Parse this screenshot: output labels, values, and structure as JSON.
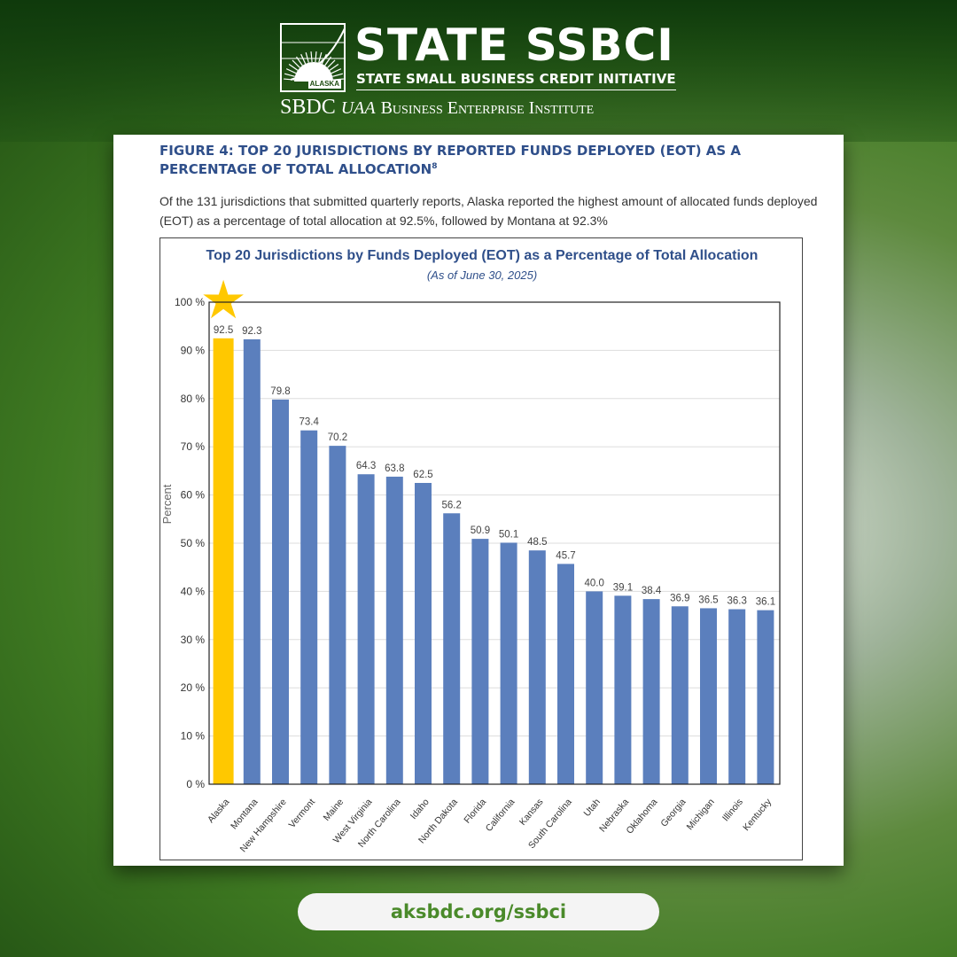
{
  "header": {
    "title": "STATE SSBCI",
    "subtitle": "STATE SMALL BUSINESS CREDIT INITIATIVE",
    "logo_text": "ALASKA",
    "org_sbdc": "SBDC",
    "org_uaa": "UAA",
    "org_bei": "Business Enterprise Institute"
  },
  "figure": {
    "title": "FIGURE 4: TOP 20 JURISDICTIONS BY REPORTED FUNDS DEPLOYED (EOT) AS A PERCENTAGE OF TOTAL ALLOCATION",
    "footnote": "8",
    "description": "Of the 131 jurisdictions that submitted quarterly reports, Alaska reported the highest amount of allocated funds deployed (EOT) as a percentage of total allocation at 92.5%, followed by Montana at 92.3%"
  },
  "chart_data": {
    "type": "bar",
    "title": "Top 20 Jurisdictions by Funds Deployed (EOT) as a Percentage of Total Allocation",
    "subtitle": "(As of June 30, 2025)",
    "xlabel": "",
    "ylabel": "Percent",
    "ylim": [
      0,
      100
    ],
    "yticks": [
      "0 %",
      "10 %",
      "20 %",
      "30 %",
      "40 %",
      "50 %",
      "60 %",
      "70 %",
      "80 %",
      "90 %",
      "100 %"
    ],
    "categories": [
      "Alaska",
      "Montana",
      "New Hampshire",
      "Vermont",
      "Maine",
      "West Virginia",
      "North Carolina",
      "Idaho",
      "North Dakota",
      "Florida",
      "California",
      "Kansas",
      "South Carolina",
      "Utah",
      "Nebraska",
      "Oklahoma",
      "Georgia",
      "Michigan",
      "Illinois",
      "Kentucky"
    ],
    "values": [
      92.5,
      92.3,
      79.8,
      73.4,
      70.2,
      64.3,
      63.8,
      62.5,
      56.2,
      50.9,
      50.1,
      48.5,
      45.7,
      40.0,
      39.1,
      38.4,
      36.9,
      36.5,
      36.3,
      36.1
    ],
    "labels": [
      "92.5",
      "92.3",
      "79.8",
      "73.4",
      "70.2",
      "64.3",
      "63.8",
      "62.5",
      "56.2",
      "50.9",
      "50.1",
      "48.5",
      "45.7",
      "40.0",
      "39.1",
      "38.4",
      "36.9",
      "36.5",
      "36.3",
      "36.1"
    ],
    "highlight": "Alaska",
    "grid": true,
    "colors": {
      "bar": "#5b7fbd",
      "highlight": "#ffc800",
      "title": "#2f4f8a"
    }
  },
  "footer": {
    "url": "aksbdc.org/ssbci"
  }
}
